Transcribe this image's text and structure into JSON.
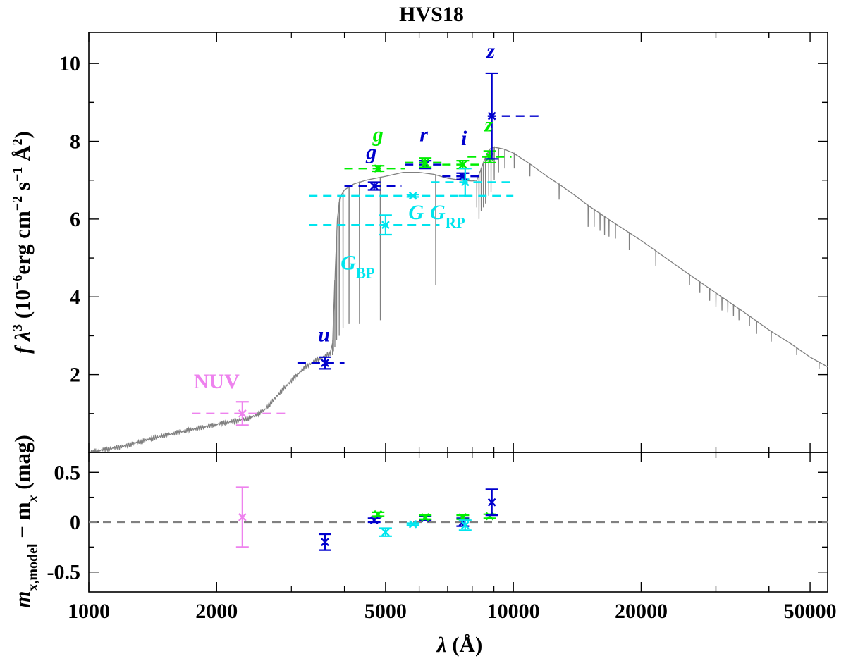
{
  "chart_data": {
    "type": "scatter",
    "title": "HVS18",
    "top_panel": {
      "ylabel_parts": [
        "f λ",
        "3",
        " (10",
        "−6",
        "erg cm",
        "−2",
        " s",
        "−1",
        " Å",
        "2",
        ")"
      ],
      "xscale": "log",
      "xlim": [
        1000,
        55000
      ],
      "ylim": [
        0,
        10.8
      ],
      "yticks": [
        2,
        4,
        6,
        8,
        10
      ],
      "model_spectrum": {
        "color": "#808080",
        "continuum": [
          [
            1000,
            0.0
          ],
          [
            1200,
            0.15
          ],
          [
            1400,
            0.35
          ],
          [
            1600,
            0.5
          ],
          [
            1800,
            0.62
          ],
          [
            2000,
            0.72
          ],
          [
            2200,
            0.8
          ],
          [
            2400,
            0.88
          ],
          [
            2600,
            1.1
          ],
          [
            2800,
            1.5
          ],
          [
            3000,
            1.85
          ],
          [
            3200,
            2.15
          ],
          [
            3400,
            2.35
          ],
          [
            3600,
            2.48
          ],
          [
            3700,
            2.55
          ],
          [
            3750,
            2.8
          ],
          [
            3800,
            4.5
          ],
          [
            3850,
            6.0
          ],
          [
            3900,
            6.55
          ],
          [
            4000,
            6.75
          ],
          [
            4200,
            6.9
          ],
          [
            4500,
            7.0
          ],
          [
            5000,
            7.1
          ],
          [
            5500,
            7.2
          ],
          [
            6000,
            7.2
          ],
          [
            6500,
            7.15
          ],
          [
            7000,
            7.05
          ],
          [
            7500,
            7.0
          ],
          [
            8000,
            6.98
          ],
          [
            8200,
            7.0
          ],
          [
            8400,
            7.3
          ],
          [
            8600,
            7.6
          ],
          [
            8800,
            7.8
          ],
          [
            9000,
            7.85
          ],
          [
            9500,
            7.8
          ],
          [
            10000,
            7.7
          ],
          [
            11000,
            7.4
          ],
          [
            12000,
            7.1
          ],
          [
            13000,
            6.85
          ],
          [
            14000,
            6.6
          ],
          [
            15000,
            6.35
          ],
          [
            17000,
            5.95
          ],
          [
            20000,
            5.45
          ],
          [
            25000,
            4.7
          ],
          [
            30000,
            4.1
          ],
          [
            35000,
            3.6
          ],
          [
            40000,
            3.15
          ],
          [
            45000,
            2.8
          ],
          [
            50000,
            2.45
          ],
          [
            55000,
            2.2
          ]
        ],
        "absorption_lines": [
          [
            3750,
            2.5
          ],
          [
            3770,
            2.6
          ],
          [
            3798,
            2.7
          ],
          [
            3835,
            2.9
          ],
          [
            3889,
            3.0
          ],
          [
            3970,
            3.2
          ],
          [
            4101,
            3.3
          ],
          [
            4340,
            3.3
          ],
          [
            4861,
            3.4
          ],
          [
            6563,
            4.3
          ],
          [
            8200,
            6.3
          ],
          [
            8300,
            6.0
          ],
          [
            8400,
            6.2
          ],
          [
            8500,
            6.3
          ],
          [
            8600,
            6.4
          ],
          [
            8750,
            6.6
          ],
          [
            8860,
            6.7
          ],
          [
            9015,
            7.0
          ],
          [
            9230,
            7.2
          ],
          [
            9546,
            7.3
          ],
          [
            10049,
            7.3
          ],
          [
            10938,
            7.1
          ],
          [
            12818,
            6.5
          ],
          [
            15000,
            5.8
          ],
          [
            15500,
            5.8
          ],
          [
            16000,
            5.7
          ],
          [
            16400,
            5.6
          ],
          [
            16800,
            5.55
          ],
          [
            17400,
            5.5
          ],
          [
            18750,
            5.2
          ],
          [
            21655,
            4.8
          ],
          [
            26000,
            4.3
          ],
          [
            27500,
            4.1
          ],
          [
            29000,
            3.9
          ],
          [
            30000,
            3.75
          ],
          [
            31000,
            3.65
          ],
          [
            32000,
            3.6
          ],
          [
            33000,
            3.5
          ],
          [
            34000,
            3.4
          ],
          [
            36000,
            3.25
          ],
          [
            37400,
            3.05
          ],
          [
            40500,
            2.85
          ],
          [
            46500,
            2.5
          ],
          [
            52500,
            2.15
          ]
        ]
      },
      "photometry": [
        {
          "band": "NUV",
          "label": "NUV",
          "italic": false,
          "color": "#ee82ee",
          "wl": 2300,
          "flux": 1.0,
          "yerr": 0.3,
          "xmin": 1750,
          "xmax": 2950,
          "label_wl": 2000,
          "label_flux": 1.65
        },
        {
          "band": "u",
          "label": "u",
          "italic": true,
          "color": "#0000cd",
          "wl": 3600,
          "flux": 2.3,
          "yerr": 0.15,
          "xmin": 3100,
          "xmax": 4000,
          "label_wl": 3580,
          "label_flux": 2.85
        },
        {
          "band": "g",
          "label": "g",
          "italic": true,
          "color": "#0000cd",
          "wl": 4700,
          "flux": 6.85,
          "yerr": 0.1,
          "xmin": 4000,
          "xmax": 5450,
          "label_wl": 4630,
          "label_flux": 7.55
        },
        {
          "band": "g",
          "label": "g",
          "italic": true,
          "color": "#00ee00",
          "wl": 4800,
          "flux": 7.3,
          "yerr": 0.07,
          "xmin": 4000,
          "xmax": 5550,
          "label_wl": 4800,
          "label_flux": 8.0
        },
        {
          "band": "r",
          "label": "r",
          "italic": true,
          "color": "#0000cd",
          "wl": 6200,
          "flux": 7.4,
          "yerr": 0.1,
          "xmin": 5550,
          "xmax": 6900,
          "label_wl": 6150,
          "label_flux": 8.0
        },
        {
          "band": "r",
          "label": "r",
          "italic": true,
          "color": "#00ee00",
          "wl": 6200,
          "flux": 7.45,
          "yerr": 0.12,
          "xmin": 5550,
          "xmax": 6950,
          "label_wl": null,
          "label_flux": null
        },
        {
          "band": "i",
          "label": "i",
          "italic": true,
          "color": "#0000cd",
          "wl": 7600,
          "flux": 7.1,
          "yerr": 0.08,
          "xmin": 6800,
          "xmax": 8300,
          "label_wl": 7650,
          "label_flux": 7.9
        },
        {
          "band": "i",
          "label": "i",
          "italic": true,
          "color": "#00ee00",
          "wl": 7600,
          "flux": 7.4,
          "yerr": 0.1,
          "xmin": 6800,
          "xmax": 8400,
          "label_wl": null,
          "label_flux": null
        },
        {
          "band": "z",
          "label": "z",
          "italic": true,
          "color": "#00ee00",
          "wl": 8800,
          "flux": 7.6,
          "yerr": 0.15,
          "xmin": 7800,
          "xmax": 9900,
          "label_wl": 8750,
          "label_flux": 8.25
        },
        {
          "band": "z",
          "label": "z",
          "italic": true,
          "color": "#0000cd",
          "wl": 8900,
          "flux": 8.65,
          "yerr": 1.1,
          "xmin": 8700,
          "xmax": 11700,
          "label_wl": 8850,
          "label_flux": 10.15
        },
        {
          "band": "G_BP",
          "label": "G",
          "sub": "BP",
          "italic": true,
          "color": "#00e5ee",
          "wl": 5000,
          "flux": 5.85,
          "yerr": 0.25,
          "xmin": 3300,
          "xmax": 6700,
          "label_wl": 4300,
          "label_flux": 4.7
        },
        {
          "band": "G",
          "label": "G",
          "italic": true,
          "color": "#00e5ee",
          "wl": 5800,
          "flux": 6.6,
          "yerr": 0.03,
          "xmin": 3300,
          "xmax": 10000,
          "label_wl": 5900,
          "label_flux": 6.0
        },
        {
          "band": "G_RP",
          "label": "G",
          "sub": "RP",
          "italic": true,
          "color": "#00e5ee",
          "wl": 7700,
          "flux": 6.95,
          "yerr": 0.35,
          "xmin": 6400,
          "xmax": 10000,
          "label_wl": 7000,
          "label_flux": 6.0
        }
      ]
    },
    "bottom_panel": {
      "ylabel_parts": [
        "m",
        "x,model",
        " − m",
        "x",
        " (mag)"
      ],
      "xlabel_parts": [
        "λ",
        " (Å)"
      ],
      "ylim": [
        -0.7,
        0.7
      ],
      "yticks": [
        0.5,
        0,
        -0.5
      ],
      "ytick_labels": [
        "0.5",
        "0",
        "-0.5"
      ],
      "zero_line": {
        "value": 0,
        "style": "dashed",
        "color": "#808080"
      },
      "residuals": [
        {
          "band": "NUV",
          "color": "#ee82ee",
          "wl": 2300,
          "value": 0.05,
          "err": 0.3
        },
        {
          "band": "u",
          "color": "#0000cd",
          "wl": 3600,
          "value": -0.2,
          "err": 0.08
        },
        {
          "band": "g",
          "color": "#0000cd",
          "wl": 4700,
          "value": 0.02,
          "err": 0.02
        },
        {
          "band": "g",
          "color": "#00ee00",
          "wl": 4800,
          "value": 0.08,
          "err": 0.02
        },
        {
          "band": "G_BP",
          "color": "#00e5ee",
          "wl": 5000,
          "value": -0.1,
          "err": 0.04
        },
        {
          "band": "G",
          "color": "#00e5ee",
          "wl": 5800,
          "value": -0.02,
          "err": 0.01
        },
        {
          "band": "r",
          "color": "#0000cd",
          "wl": 6200,
          "value": 0.04,
          "err": 0.02
        },
        {
          "band": "r",
          "color": "#00ee00",
          "wl": 6200,
          "value": 0.05,
          "err": 0.02
        },
        {
          "band": "i",
          "color": "#0000cd",
          "wl": 7600,
          "value": 0.0,
          "err": 0.04
        },
        {
          "band": "i",
          "color": "#00ee00",
          "wl": 7600,
          "value": 0.05,
          "err": 0.02
        },
        {
          "band": "G_RP",
          "color": "#00e5ee",
          "wl": 7700,
          "value": -0.03,
          "err": 0.05
        },
        {
          "band": "z",
          "color": "#00ee00",
          "wl": 8800,
          "value": 0.06,
          "err": 0.02
        },
        {
          "band": "z",
          "color": "#0000cd",
          "wl": 8900,
          "value": 0.2,
          "err": 0.13
        }
      ]
    },
    "xticks": [
      1000,
      2000,
      5000,
      10000,
      20000,
      50000
    ],
    "xtick_labels": [
      "1000",
      "2000",
      "5000",
      "10000",
      "20000",
      "50000"
    ]
  }
}
